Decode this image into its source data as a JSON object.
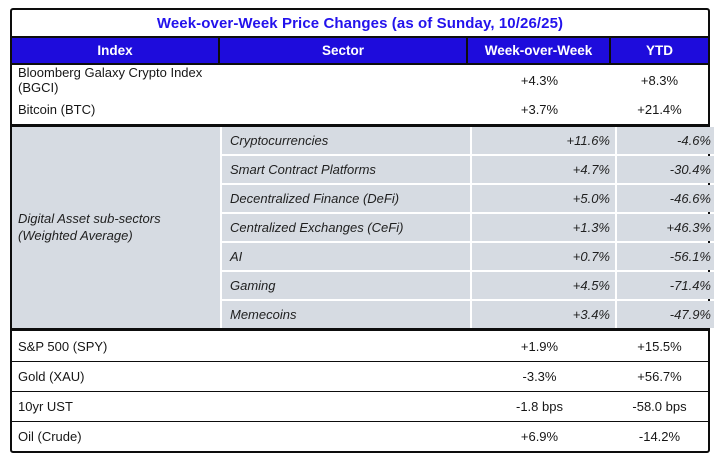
{
  "chart_data": {
    "type": "table",
    "title": "Week-over-Week Price Changes (as of Sunday, 10/26/25)",
    "columns": {
      "index": "Index",
      "sector": "Sector",
      "wow": "Week-over-Week",
      "ytd": "YTD"
    },
    "index_rows": [
      {
        "index": "Bloomberg Galaxy Crypto Index (BGCI)",
        "wow": "+4.3%",
        "ytd": "+8.3%"
      },
      {
        "index": "Bitcoin (BTC)",
        "wow": "+3.7%",
        "ytd": "+21.4%"
      }
    ],
    "subsector_group": {
      "label_line1": "Digital Asset sub-sectors",
      "label_line2": "(Weighted Average)",
      "rows": [
        {
          "sector": "Cryptocurrencies",
          "wow": "+11.6%",
          "ytd": "-4.6%"
        },
        {
          "sector": "Smart Contract Platforms",
          "wow": "+4.7%",
          "ytd": "-30.4%"
        },
        {
          "sector": "Decentralized Finance (DeFi)",
          "wow": "+5.0%",
          "ytd": "-46.6%"
        },
        {
          "sector": "Centralized Exchanges (CeFi)",
          "wow": "+1.3%",
          "ytd": "+46.3%"
        },
        {
          "sector": "AI",
          "wow": "+0.7%",
          "ytd": "-56.1%"
        },
        {
          "sector": "Gaming",
          "wow": "+4.5%",
          "ytd": "-71.4%"
        },
        {
          "sector": "Memecoins",
          "wow": "+3.4%",
          "ytd": "-47.9%"
        }
      ]
    },
    "macro_rows": [
      {
        "index": "S&P 500 (SPY)",
        "wow": "+1.9%",
        "ytd": "+15.5%"
      },
      {
        "index": "Gold (XAU)",
        "wow": "-3.3%",
        "ytd": "+56.7%"
      },
      {
        "index": "10yr UST",
        "wow": "-1.8 bps",
        "ytd": "-58.0 bps"
      },
      {
        "index": "Oil (Crude)",
        "wow": "+6.9%",
        "ytd": "-14.2%"
      }
    ],
    "colors": {
      "header_blue": "#1e0cdc",
      "title_blue": "#2312ec",
      "subsector_gray": "#d6dbe2",
      "border_black": "#0d0d0d",
      "header_text": "#ffffff"
    }
  }
}
